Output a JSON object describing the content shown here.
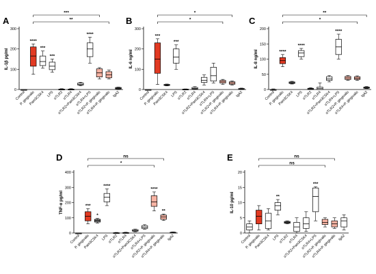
{
  "colors": {
    "strong": "#e23a22",
    "light": "#f7b3a3",
    "white": "#ffffff",
    "gray": "#7a7a7a",
    "stroke": "#000000"
  },
  "categories": [
    "Control",
    "P. gingivalis",
    "Pam3CSK4",
    "LPS",
    "αTLR2",
    "αTLR4",
    "αTLR2+Pam3CSK4",
    "αTLR4+LPS",
    "αTLR2+P. gingivalis",
    "αTLR4+P. gingivalis",
    "IgA2"
  ],
  "chart_data": [
    {
      "type": "boxplot",
      "panel": "A",
      "ylabel": "IL-1β pg/ml",
      "ylim": [
        0,
        300
      ],
      "yticks": [
        0,
        100,
        200,
        300
      ],
      "boxes": [
        {
          "min": 0,
          "q1": 0,
          "med": 0,
          "q3": 0,
          "max": 0,
          "fill": "gray"
        },
        {
          "min": 75,
          "q1": 115,
          "med": 165,
          "q3": 210,
          "max": 225,
          "fill": "strong"
        },
        {
          "min": 105,
          "q1": 118,
          "med": 138,
          "q3": 165,
          "max": 190,
          "fill": "white"
        },
        {
          "min": 85,
          "q1": 98,
          "med": 115,
          "q3": 135,
          "max": 150,
          "fill": "white"
        },
        {
          "min": 0,
          "q1": 0,
          "med": 0,
          "q3": 2,
          "max": 4,
          "fill": "gray"
        },
        {
          "min": 0,
          "q1": 0,
          "med": 0,
          "q3": 2,
          "max": 4,
          "fill": "gray"
        },
        {
          "min": 18,
          "q1": 22,
          "med": 26,
          "q3": 32,
          "max": 36,
          "fill": "white"
        },
        {
          "min": 130,
          "q1": 162,
          "med": 200,
          "q3": 230,
          "max": 258,
          "fill": "white"
        },
        {
          "min": 52,
          "q1": 62,
          "med": 82,
          "q3": 102,
          "max": 108,
          "fill": "light"
        },
        {
          "min": 52,
          "q1": 58,
          "med": 72,
          "q3": 88,
          "max": 96,
          "fill": "light"
        },
        {
          "min": 0,
          "q1": 3,
          "med": 6,
          "q3": 10,
          "max": 12,
          "fill": "gray"
        }
      ],
      "stars": [
        "",
        "****",
        "***",
        "***",
        "",
        "",
        "",
        "****",
        "",
        "",
        ""
      ],
      "brackets": [
        {
          "from": 1,
          "to": 8,
          "label": "***",
          "level": 0
        },
        {
          "from": 1,
          "to": 9,
          "label": "**",
          "level": 1
        }
      ]
    },
    {
      "type": "boxplot",
      "panel": "B",
      "ylabel": "IL-6 ng/ml",
      "ylim": [
        0,
        300
      ],
      "yticks": [
        0,
        100,
        200,
        300
      ],
      "boxes": [
        {
          "min": 0,
          "q1": 0,
          "med": 0,
          "q3": 0,
          "max": 0,
          "fill": "gray"
        },
        {
          "min": 25,
          "q1": 80,
          "med": 150,
          "q3": 230,
          "max": 250,
          "fill": "strong"
        },
        {
          "min": 18,
          "q1": 20,
          "med": 22,
          "q3": 25,
          "max": 27,
          "fill": "gray"
        },
        {
          "min": 100,
          "q1": 130,
          "med": 160,
          "q3": 200,
          "max": 220,
          "fill": "white"
        },
        {
          "min": 0,
          "q1": 0,
          "med": 0,
          "q3": 2,
          "max": 3,
          "fill": "gray"
        },
        {
          "min": 0,
          "q1": 2,
          "med": 5,
          "q3": 10,
          "max": 14,
          "fill": "white"
        },
        {
          "min": 22,
          "q1": 35,
          "med": 45,
          "q3": 60,
          "max": 72,
          "fill": "white"
        },
        {
          "min": 32,
          "q1": 42,
          "med": 68,
          "q3": 110,
          "max": 130,
          "fill": "white"
        },
        {
          "min": 25,
          "q1": 32,
          "med": 38,
          "q3": 45,
          "max": 50,
          "fill": "light"
        },
        {
          "min": 22,
          "q1": 26,
          "med": 32,
          "q3": 38,
          "max": 42,
          "fill": "light"
        },
        {
          "min": 0,
          "q1": 1,
          "med": 3,
          "q3": 5,
          "max": 7,
          "fill": "gray"
        }
      ],
      "stars": [
        "",
        "***",
        "",
        "***",
        "",
        "",
        "",
        "",
        "",
        "",
        ""
      ],
      "brackets": [
        {
          "from": 1,
          "to": 9,
          "label": "*",
          "level": 0
        },
        {
          "from": 1,
          "to": 8,
          "label": "*",
          "level": 1
        }
      ]
    },
    {
      "type": "boxplot",
      "panel": "C",
      "ylabel": "IL-8 ng/ml",
      "ylim": [
        0,
        200
      ],
      "yticks": [
        0,
        50,
        100,
        150,
        200
      ],
      "boxes": [
        {
          "min": 0,
          "q1": 0,
          "med": 0,
          "q3": 0,
          "max": 2,
          "fill": "gray"
        },
        {
          "min": 75,
          "q1": 85,
          "med": 95,
          "q3": 105,
          "max": 115,
          "fill": "strong"
        },
        {
          "min": 18,
          "q1": 20,
          "med": 22,
          "q3": 25,
          "max": 27,
          "fill": "gray"
        },
        {
          "min": 100,
          "q1": 108,
          "med": 120,
          "q3": 128,
          "max": 135,
          "fill": "white"
        },
        {
          "min": 0,
          "q1": 0,
          "med": 2,
          "q3": 4,
          "max": 6,
          "fill": "gray"
        },
        {
          "min": 0,
          "q1": 0,
          "med": 3,
          "q3": 8,
          "max": 22,
          "fill": "white"
        },
        {
          "min": 25,
          "q1": 30,
          "med": 35,
          "q3": 42,
          "max": 46,
          "fill": "white"
        },
        {
          "min": 100,
          "q1": 115,
          "med": 140,
          "q3": 165,
          "max": 182,
          "fill": "white"
        },
        {
          "min": 30,
          "q1": 33,
          "med": 38,
          "q3": 43,
          "max": 46,
          "fill": "light"
        },
        {
          "min": 30,
          "q1": 33,
          "med": 37,
          "q3": 42,
          "max": 45,
          "fill": "light"
        },
        {
          "min": 3,
          "q1": 4,
          "med": 6,
          "q3": 8,
          "max": 10,
          "fill": "gray"
        }
      ],
      "stars": [
        "",
        "****",
        "",
        "****",
        "",
        "",
        "",
        "****",
        "",
        "",
        ""
      ],
      "brackets": [
        {
          "from": 1,
          "to": 10,
          "label": "**",
          "level": 0
        },
        {
          "from": 1,
          "to": 9,
          "label": "*",
          "level": 1
        }
      ]
    },
    {
      "type": "boxplot",
      "panel": "D",
      "ylabel": "TNF-α pg/ml",
      "ylim": [
        0,
        400
      ],
      "yticks": [
        0,
        100,
        200,
        300,
        400
      ],
      "boxes": [
        {
          "min": 0,
          "q1": 0,
          "med": 0,
          "q3": 0,
          "max": 0,
          "fill": "gray"
        },
        {
          "min": 60,
          "q1": 80,
          "med": 110,
          "q3": 140,
          "max": 160,
          "fill": "strong"
        },
        {
          "min": 65,
          "q1": 72,
          "med": 82,
          "q3": 90,
          "max": 96,
          "fill": "gray"
        },
        {
          "min": 180,
          "q1": 205,
          "med": 235,
          "q3": 260,
          "max": 290,
          "fill": "white"
        },
        {
          "min": 0,
          "q1": 0,
          "med": 0,
          "q3": 2,
          "max": 4,
          "fill": "gray"
        },
        {
          "min": 0,
          "q1": 0,
          "med": 0,
          "q3": 3,
          "max": 5,
          "fill": "gray"
        },
        {
          "min": 8,
          "q1": 12,
          "med": 16,
          "q3": 22,
          "max": 26,
          "fill": "white"
        },
        {
          "min": 25,
          "q1": 30,
          "med": 38,
          "q3": 48,
          "max": 55,
          "fill": "white"
        },
        {
          "min": 145,
          "q1": 175,
          "med": 205,
          "q3": 245,
          "max": 270,
          "fill": "light"
        },
        {
          "min": 82,
          "q1": 90,
          "med": 105,
          "q3": 118,
          "max": 125,
          "fill": "light"
        },
        {
          "min": 0,
          "q1": 1,
          "med": 3,
          "q3": 5,
          "max": 7,
          "fill": "gray"
        }
      ],
      "stars": [
        "",
        "***",
        "*",
        "****",
        "",
        "",
        "",
        "",
        "****",
        "**",
        ""
      ],
      "brackets": [
        {
          "from": 1,
          "to": 9,
          "label": "ns",
          "level": 0
        },
        {
          "from": 1,
          "to": 8,
          "label": "*",
          "level": 1
        }
      ]
    },
    {
      "type": "boxplot",
      "panel": "E",
      "ylabel": "IL-10 pg/ml",
      "ylim": [
        0,
        20
      ],
      "yticks": [
        0,
        5,
        10,
        15,
        20
      ],
      "boxes": [
        {
          "min": 0,
          "q1": 1,
          "med": 2,
          "q3": 3,
          "max": 4,
          "fill": "white"
        },
        {
          "min": 1,
          "q1": 3,
          "med": 5.5,
          "q3": 7.5,
          "max": 9,
          "fill": "strong"
        },
        {
          "min": 1,
          "q1": 1.5,
          "med": 4,
          "q3": 6.5,
          "max": 8,
          "fill": "white"
        },
        {
          "min": 6,
          "q1": 7.5,
          "med": 9,
          "q3": 10,
          "max": 11,
          "fill": "white"
        },
        {
          "min": 3,
          "q1": 3.2,
          "med": 3.5,
          "q3": 3.8,
          "max": 4,
          "fill": "gray"
        },
        {
          "min": 0,
          "q1": 0.5,
          "med": 2,
          "q3": 3.5,
          "max": 5,
          "fill": "white"
        },
        {
          "min": 0.5,
          "q1": 1.5,
          "med": 3,
          "q3": 5,
          "max": 7,
          "fill": "white"
        },
        {
          "min": 4,
          "q1": 7,
          "med": 12,
          "q3": 14.8,
          "max": 15.2,
          "fill": "white"
        },
        {
          "min": 2,
          "q1": 2.8,
          "med": 3.5,
          "q3": 4.5,
          "max": 5,
          "fill": "light"
        },
        {
          "min": 1.5,
          "q1": 2,
          "med": 3,
          "q3": 4,
          "max": 5,
          "fill": "light"
        },
        {
          "min": 1,
          "q1": 2,
          "med": 4,
          "q3": 5,
          "max": 6,
          "fill": "white"
        }
      ],
      "stars": [
        "",
        "",
        "",
        "**",
        "",
        "",
        "",
        "***",
        "",
        "",
        ""
      ],
      "brackets": [
        {
          "from": 1,
          "to": 9,
          "label": "ns",
          "level": 0
        },
        {
          "from": 1,
          "to": 8,
          "label": "ns",
          "level": 1
        }
      ]
    }
  ]
}
